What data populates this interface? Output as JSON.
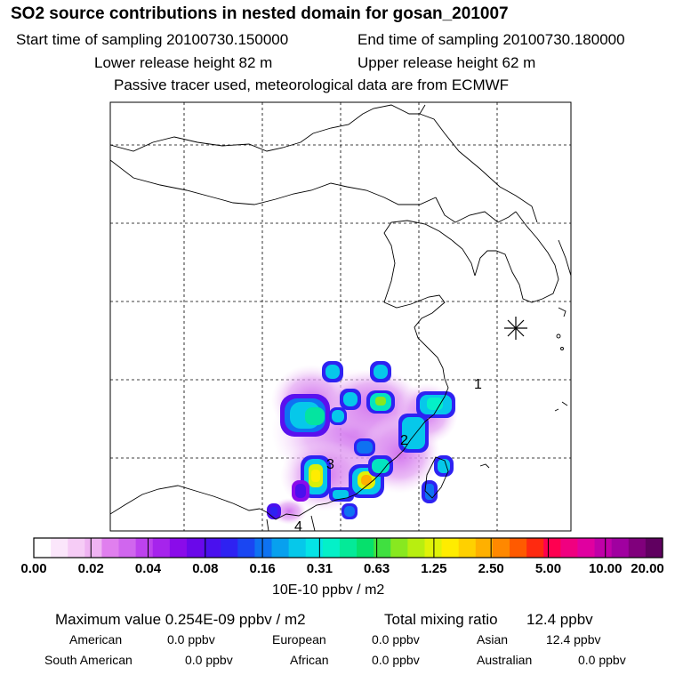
{
  "header": {
    "title": "SO2 source contributions in nested domain for gosan_201007",
    "start_time": "Start time of sampling 20100730.150000",
    "end_time": "End time of sampling 20100730.180000",
    "lower_release": "Lower release height   82 m",
    "upper_release": "Upper release height   62 m",
    "note": "Passive tracer used, meteorological data are from ECMWF"
  },
  "map": {
    "point_labels": [
      "1",
      "2",
      "3",
      "4"
    ],
    "receptor_marker": "star-icon"
  },
  "colorbar": {
    "ticks": [
      "0.00",
      "0.02",
      "0.04",
      "0.08",
      "0.16",
      "0.31",
      "0.63",
      "1.25",
      "2.50",
      "5.00",
      "10.00",
      "20.00"
    ],
    "units": "10E-10 ppbv / m2",
    "colors": [
      "#ffffff",
      "#fbe6fb",
      "#f6ccf6",
      "#efb3f2",
      "#e07fee",
      "#d066ee",
      "#bd42ee",
      "#a624ec",
      "#8a0bea",
      "#6a08ea",
      "#4a10ee",
      "#2e22f2",
      "#1a46f2",
      "#0e72f2",
      "#08a0ee",
      "#06c8ea",
      "#04e4e6",
      "#04f0c8",
      "#04ea98",
      "#06e06c",
      "#40e040",
      "#88e820",
      "#b8ee10",
      "#e0f208",
      "#ffec00",
      "#ffd000",
      "#ffb000",
      "#ff8800",
      "#ff5a00",
      "#ff2a10",
      "#ff0050",
      "#f00080",
      "#e000a0",
      "#c000a8",
      "#a000a0",
      "#80007c",
      "#600060"
    ]
  },
  "summary": {
    "max_value": "Maximum value  0.254E-09 ppbv / m2",
    "total_label": "Total mixing ratio",
    "total_value": "12.4 ppbv",
    "regions": [
      {
        "name": "American",
        "value": "0.0 ppbv"
      },
      {
        "name": "European",
        "value": "0.0 ppbv"
      },
      {
        "name": "Asian",
        "value": "12.4 ppbv"
      },
      {
        "name": "South American",
        "value": "0.0 ppbv"
      },
      {
        "name": "African",
        "value": "0.0 ppbv"
      },
      {
        "name": "Australian",
        "value": "0.0 ppbv"
      }
    ]
  }
}
